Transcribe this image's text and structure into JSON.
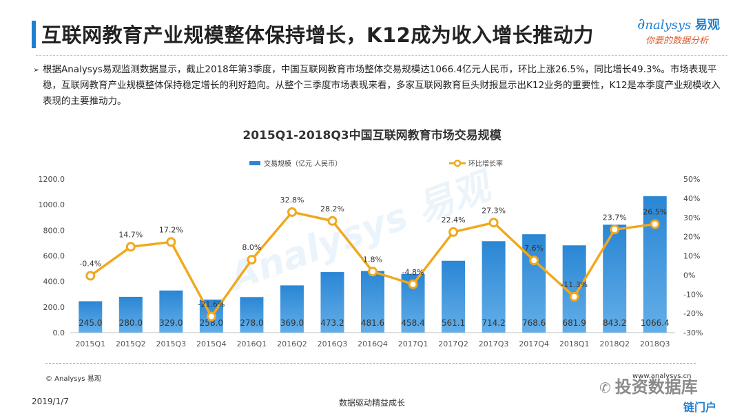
{
  "page": {
    "title": "互联网教育产业规模整体保持增长，K12成为收入增长推动力",
    "logo": {
      "brand": "nalysys",
      "brand_cn": "易观",
      "slogan": "你要的数据分析"
    },
    "bullet": "根据Analysys易观监测数据显示，截止2018年第3季度，中国互联网教育市场整体交易规模达1066.4亿元人民币，环比上涨26.5%，同比增长49.3%。市场表现平稳，互联网教育产业规模整体保持稳定增长的利好趋向。从整个三季度市场表现来看，多家互联网教育巨头财报显示出K12业务的重要性，K12是本季度产业规模收入表现的主要推动力。",
    "source": "© Analysys 易观",
    "website": "www.analysys.cn",
    "date": "2019/1/7",
    "bottom_slogan": "数据驱动精益成长",
    "wechat_label": "投资数据库",
    "corner_logo": "链门户",
    "watermark": "Analysys 易观"
  },
  "colors": {
    "bar": "#2a86d4",
    "bar_light": "#63aee8",
    "line": "#f1a81e",
    "accent": "#1f7fd0"
  },
  "chart_data": {
    "type": "bar",
    "title": "2015Q1-2018Q3中国互联网教育市场交易规模",
    "categories": [
      "2015Q1",
      "2015Q2",
      "2015Q3",
      "2015Q4",
      "2016Q1",
      "2016Q2",
      "2016Q3",
      "2016Q4",
      "2017Q1",
      "2017Q2",
      "2017Q3",
      "2017Q4",
      "2018Q1",
      "2018Q2",
      "2018Q3"
    ],
    "series": [
      {
        "name": "交易规模（亿元 人民币）",
        "type": "bar",
        "axis": "left",
        "values": [
          245.0,
          280.0,
          329.0,
          258.0,
          278.0,
          369.0,
          473.2,
          481.6,
          458.4,
          561.1,
          714.2,
          768.6,
          681.9,
          843.2,
          1066.4
        ],
        "labels": [
          "245.0",
          "280.0",
          "329.0",
          "258.0",
          "278.0",
          "369.0",
          "473.2",
          "481.6",
          "458.4",
          "561.1",
          "714.2",
          "768.6",
          "681.9",
          "843.2",
          "1066.4"
        ]
      },
      {
        "name": "环比增长率",
        "type": "line",
        "axis": "right",
        "values": [
          -0.4,
          14.7,
          17.2,
          -21.6,
          8.0,
          32.8,
          28.2,
          1.8,
          -4.8,
          22.4,
          27.3,
          7.6,
          -11.3,
          23.7,
          26.5
        ],
        "labels": [
          "-0.4%",
          "14.7%",
          "17.2%",
          "-21.6%",
          "8.0%",
          "32.8%",
          "28.2%",
          "1.8%",
          "-4.8%",
          "22.4%",
          "27.3%",
          "7.6%",
          "-11.3%",
          "23.7%",
          "26.5%"
        ]
      }
    ],
    "y_left": {
      "min": 0,
      "max": 1200,
      "ticks": [
        0,
        200,
        400,
        600,
        800,
        1000,
        1200
      ],
      "tick_labels": [
        "0.0",
        "200.0",
        "400.0",
        "600.0",
        "800.0",
        "1000.0",
        "1200.0"
      ]
    },
    "y_right": {
      "min": -30,
      "max": 50,
      "ticks": [
        -30,
        -20,
        -10,
        0,
        10,
        20,
        30,
        40,
        50
      ],
      "tick_labels": [
        "-30%",
        "-20%",
        "-10%",
        "0%",
        "10%",
        "20%",
        "30%",
        "40%",
        "50%"
      ]
    },
    "legend_position": "top",
    "grid": false
  }
}
